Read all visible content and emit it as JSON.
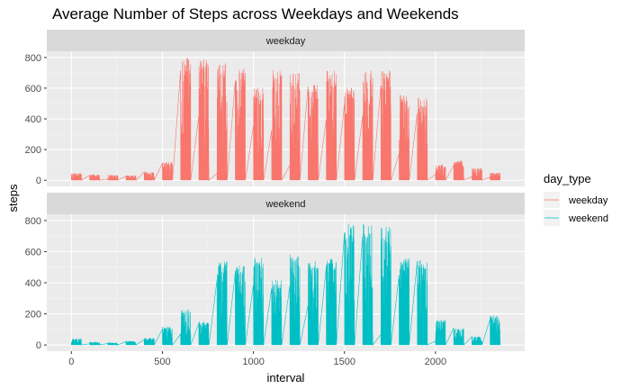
{
  "chart_data": {
    "type": "line",
    "title": "Average Number of Steps across Weekdays and Weekends",
    "xlabel": "interval",
    "ylabel": "steps",
    "xlim": [
      -135,
      2490
    ],
    "ylim": [
      -40,
      840
    ],
    "x_ticks": [
      0,
      500,
      1000,
      1500,
      2000
    ],
    "x_tick_labels": [
      "0",
      "500",
      "1000",
      "1500",
      "2000"
    ],
    "y_ticks": [
      0,
      200,
      400,
      600,
      800
    ],
    "y_tick_labels": [
      "0",
      "200",
      "400",
      "600",
      "800"
    ],
    "grid": true,
    "legend": {
      "title": "day_type",
      "position": "right",
      "entries": [
        {
          "label": "weekday",
          "color": "#F8766D"
        },
        {
          "label": "weekend",
          "color": "#00BFC4"
        }
      ]
    },
    "panels": [
      {
        "strip": "weekday",
        "color": "#F8766D",
        "clusters": [
          [
            0,
            55,
            45
          ],
          [
            100,
            155,
            38
          ],
          [
            200,
            255,
            35
          ],
          [
            300,
            355,
            32
          ],
          [
            400,
            455,
            55
          ],
          [
            500,
            555,
            120
          ],
          [
            600,
            655,
            800
          ],
          [
            700,
            755,
            790
          ],
          [
            800,
            855,
            770
          ],
          [
            900,
            955,
            740
          ],
          [
            1000,
            1055,
            610
          ],
          [
            1100,
            1155,
            720
          ],
          [
            1200,
            1255,
            720
          ],
          [
            1300,
            1355,
            630
          ],
          [
            1400,
            1455,
            720
          ],
          [
            1500,
            1555,
            610
          ],
          [
            1600,
            1655,
            720
          ],
          [
            1700,
            1755,
            720
          ],
          [
            1800,
            1855,
            560
          ],
          [
            1900,
            1955,
            540
          ],
          [
            2000,
            2055,
            100
          ],
          [
            2100,
            2155,
            130
          ],
          [
            2200,
            2255,
            80
          ],
          [
            2300,
            2355,
            50
          ]
        ]
      },
      {
        "strip": "weekend",
        "color": "#00BFC4",
        "clusters": [
          [
            0,
            55,
            40
          ],
          [
            100,
            155,
            20
          ],
          [
            200,
            255,
            15
          ],
          [
            300,
            355,
            25
          ],
          [
            400,
            455,
            45
          ],
          [
            500,
            555,
            120
          ],
          [
            600,
            655,
            230
          ],
          [
            700,
            755,
            150
          ],
          [
            800,
            855,
            540
          ],
          [
            900,
            955,
            520
          ],
          [
            1000,
            1055,
            560
          ],
          [
            1100,
            1155,
            420
          ],
          [
            1200,
            1255,
            580
          ],
          [
            1300,
            1355,
            540
          ],
          [
            1400,
            1455,
            560
          ],
          [
            1500,
            1555,
            790
          ],
          [
            1600,
            1655,
            780
          ],
          [
            1700,
            1755,
            760
          ],
          [
            1800,
            1855,
            560
          ],
          [
            1900,
            1955,
            550
          ],
          [
            2000,
            2055,
            160
          ],
          [
            2100,
            2155,
            110
          ],
          [
            2200,
            2255,
            55
          ],
          [
            2300,
            2355,
            190
          ]
        ]
      }
    ]
  }
}
